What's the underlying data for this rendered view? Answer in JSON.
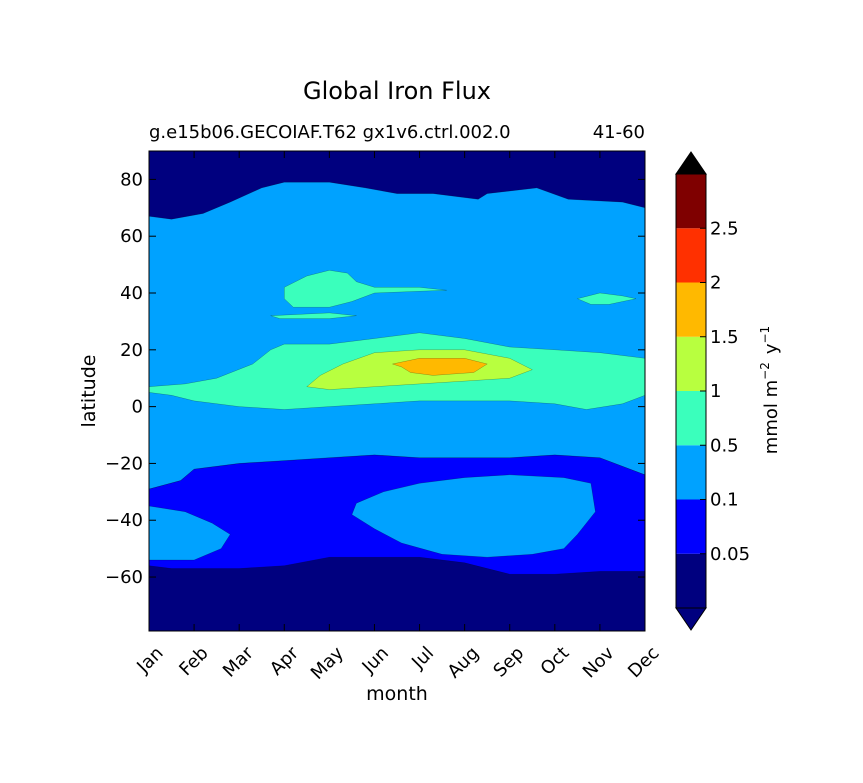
{
  "chart_data": {
    "type": "contour",
    "title": "Global Iron Flux",
    "subtitle_left": "g.e15b06.GECOIAF.T62 gx1v6.ctrl.002.0",
    "subtitle_right": "41-60",
    "xlabel": "month",
    "ylabel": "latitude",
    "x_categories": [
      "Jan",
      "Feb",
      "Mar",
      "Apr",
      "May",
      "Jun",
      "Jul",
      "Aug",
      "Sep",
      "Oct",
      "Nov",
      "Dec"
    ],
    "xlim": [
      0,
      11
    ],
    "ylim": [
      -79,
      90
    ],
    "y_ticks": [
      {
        "value": 80,
        "label": "80"
      },
      {
        "value": 60,
        "label": "60"
      },
      {
        "value": 40,
        "label": "40"
      },
      {
        "value": 20,
        "label": "20"
      },
      {
        "value": 0,
        "label": "0"
      },
      {
        "value": -20,
        "label": "−20"
      },
      {
        "value": -40,
        "label": "−40"
      },
      {
        "value": -60,
        "label": "−60"
      }
    ],
    "colorbar": {
      "label_main": "mmol m",
      "label_exp1": "−2",
      "label_mid": "y",
      "label_exp2": "−1",
      "extend": "both",
      "levels": [
        0.05,
        0.1,
        0.5,
        1,
        1.5,
        2,
        2.5
      ],
      "tick_labels": [
        "0.05",
        "0.1",
        "0.5",
        "1",
        "1.5",
        "2",
        "2.5"
      ],
      "colors": [
        "#00007f",
        "#0000ff",
        "#00a2ff",
        "#3affbc",
        "#b8ff3f",
        "#ffb900",
        "#ff3000",
        "#7f0000"
      ]
    },
    "regions": [
      {
        "level": 1,
        "color": "#0000ff",
        "label": "0.05-0.1 southern band",
        "points": [
          [
            0,
            -56
          ],
          [
            0.5,
            -57
          ],
          [
            1,
            -57
          ],
          [
            2,
            -57
          ],
          [
            3,
            -56
          ],
          [
            4,
            -53
          ],
          [
            5,
            -53
          ],
          [
            6,
            -53
          ],
          [
            7,
            -55
          ],
          [
            8,
            -59
          ],
          [
            9,
            -59
          ],
          [
            10,
            -58
          ],
          [
            11,
            -58
          ],
          [
            11,
            -24
          ],
          [
            10,
            -18
          ],
          [
            9,
            -17
          ],
          [
            8,
            -18
          ],
          [
            7,
            -18
          ],
          [
            6,
            -18
          ],
          [
            5,
            -17
          ],
          [
            4,
            -18
          ],
          [
            3,
            -19
          ],
          [
            2,
            -20
          ],
          [
            1,
            -22
          ],
          [
            0.7,
            -26
          ],
          [
            0,
            -29
          ]
        ]
      },
      {
        "level": 2,
        "color": "#00a2ff",
        "label": "0.1-0.5 SW patch",
        "points": [
          [
            0,
            -54
          ],
          [
            1,
            -54
          ],
          [
            1.6,
            -50
          ],
          [
            1.8,
            -45
          ],
          [
            1.4,
            -41
          ],
          [
            0.8,
            -37
          ],
          [
            0,
            -35
          ]
        ]
      },
      {
        "level": 2,
        "color": "#00a2ff",
        "label": "0.1-0.5 southern patch",
        "points": [
          [
            4.5,
            -38
          ],
          [
            5,
            -43
          ],
          [
            5.6,
            -48
          ],
          [
            6.5,
            -52
          ],
          [
            7.5,
            -53
          ],
          [
            8.5,
            -52
          ],
          [
            9.2,
            -50
          ],
          [
            9.5,
            -45
          ],
          [
            9.9,
            -37
          ],
          [
            9.8,
            -27
          ],
          [
            9.2,
            -25
          ],
          [
            8,
            -24
          ],
          [
            7,
            -25
          ],
          [
            6,
            -27
          ],
          [
            5.2,
            -30
          ],
          [
            4.6,
            -34
          ]
        ]
      },
      {
        "level": 2,
        "color": "#00a2ff",
        "label": "0.1-0.5 middle band",
        "points": [
          [
            0,
            -29
          ],
          [
            0.7,
            -26
          ],
          [
            1,
            -22
          ],
          [
            2,
            -20
          ],
          [
            3,
            -19
          ],
          [
            4,
            -18
          ],
          [
            5,
            -17
          ],
          [
            6,
            -18
          ],
          [
            7,
            -18
          ],
          [
            8,
            -18
          ],
          [
            9,
            -17
          ],
          [
            10,
            -18
          ],
          [
            11,
            -24
          ],
          [
            11,
            70
          ],
          [
            10.5,
            72
          ],
          [
            9.3,
            73
          ],
          [
            8.6,
            77
          ],
          [
            7.5,
            75
          ],
          [
            7.3,
            73
          ],
          [
            6.3,
            75
          ],
          [
            5.5,
            75
          ],
          [
            4.8,
            77
          ],
          [
            4,
            79
          ],
          [
            3,
            79
          ],
          [
            2.5,
            77
          ],
          [
            1.8,
            72
          ],
          [
            1.2,
            68
          ],
          [
            0.5,
            66
          ],
          [
            0,
            67
          ]
        ]
      },
      {
        "level": 3,
        "color": "#3affbc",
        "label": "0.5-1 equatorial band",
        "points": [
          [
            0,
            5
          ],
          [
            0.5,
            4
          ],
          [
            1,
            2
          ],
          [
            2,
            0
          ],
          [
            3,
            -1
          ],
          [
            4,
            0
          ],
          [
            5,
            1
          ],
          [
            6,
            2
          ],
          [
            7,
            2
          ],
          [
            8,
            2
          ],
          [
            9,
            1
          ],
          [
            9.7,
            -1
          ],
          [
            10.5,
            1
          ],
          [
            11,
            4
          ],
          [
            11,
            17
          ],
          [
            10,
            19
          ],
          [
            9,
            20
          ],
          [
            8,
            21
          ],
          [
            7,
            24
          ],
          [
            6,
            26
          ],
          [
            5,
            24
          ],
          [
            4,
            22
          ],
          [
            3,
            22
          ],
          [
            2.7,
            20
          ],
          [
            2.3,
            15
          ],
          [
            1.5,
            10
          ],
          [
            0.8,
            8
          ],
          [
            0,
            7
          ]
        ]
      },
      {
        "level": 3,
        "color": "#3affbc",
        "label": "0.5-1 northern patch",
        "points": [
          [
            3,
            42
          ],
          [
            3.5,
            46
          ],
          [
            4,
            48
          ],
          [
            4.4,
            47
          ],
          [
            4.6,
            44
          ],
          [
            5,
            42
          ],
          [
            6,
            42
          ],
          [
            6.6,
            41
          ],
          [
            5,
            40
          ],
          [
            4.5,
            37
          ],
          [
            4,
            35
          ],
          [
            3.2,
            35
          ],
          [
            3,
            38
          ]
        ]
      },
      {
        "level": 3,
        "color": "#3affbc",
        "label": "0.5-1 small strip",
        "points": [
          [
            2.7,
            32
          ],
          [
            4,
            33
          ],
          [
            4.6,
            32
          ],
          [
            4,
            31
          ],
          [
            2.9,
            31
          ]
        ]
      },
      {
        "level": 3,
        "color": "#3affbc",
        "label": "0.5-1 northeast patch",
        "points": [
          [
            9.5,
            38
          ],
          [
            10,
            40
          ],
          [
            10.5,
            39
          ],
          [
            10.8,
            38
          ],
          [
            10.2,
            36
          ],
          [
            9.8,
            36
          ]
        ]
      },
      {
        "level": 4,
        "color": "#b8ff3f",
        "label": "1-1.5 core",
        "points": [
          [
            3.5,
            7
          ],
          [
            3.8,
            11
          ],
          [
            4.3,
            15
          ],
          [
            5,
            19
          ],
          [
            6,
            20
          ],
          [
            7,
            20
          ],
          [
            8,
            17
          ],
          [
            8.5,
            13
          ],
          [
            8,
            10
          ],
          [
            7,
            9
          ],
          [
            6,
            8
          ],
          [
            5,
            7
          ],
          [
            4,
            6
          ]
        ]
      },
      {
        "level": 5,
        "color": "#ffb900",
        "label": "1.5-2 core",
        "points": [
          [
            5.4,
            15
          ],
          [
            6,
            17
          ],
          [
            7,
            17
          ],
          [
            7.5,
            15
          ],
          [
            7.2,
            12
          ],
          [
            6.3,
            11
          ],
          [
            5.8,
            12
          ],
          [
            5.6,
            14
          ]
        ]
      }
    ]
  }
}
